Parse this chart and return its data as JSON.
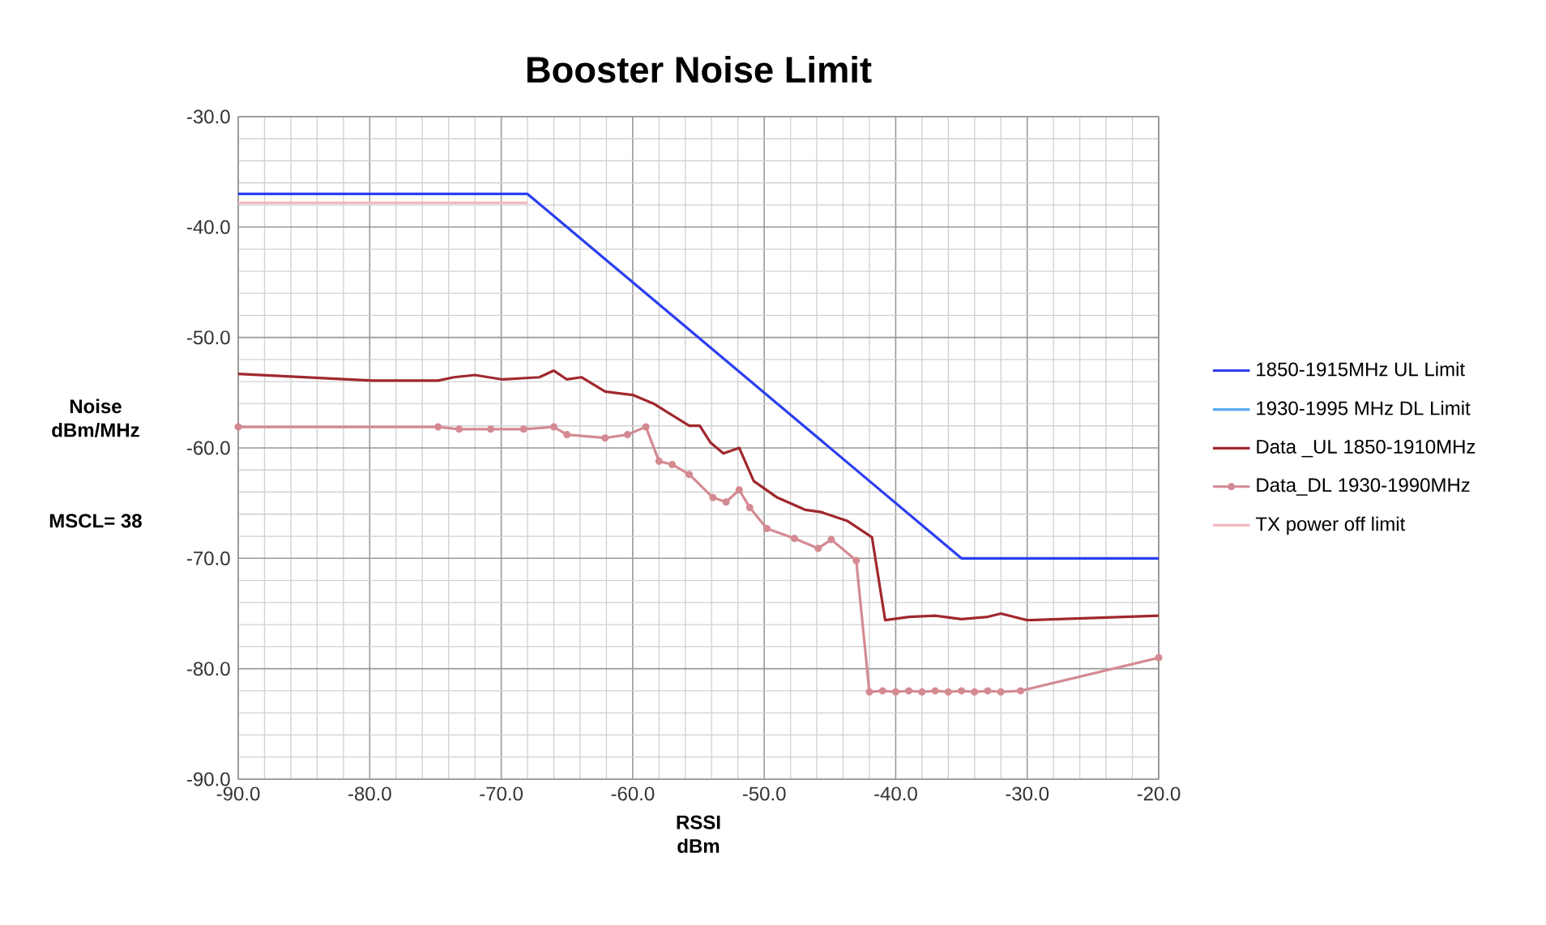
{
  "chart_data": {
    "type": "line",
    "title": "Booster Noise  Limit",
    "xlabel": "RSSI dBm",
    "ylabel": "Noise dBm/MHz",
    "annotations": [
      "MSCL= 38"
    ],
    "xlim": [
      -90,
      -20
    ],
    "ylim": [
      -90,
      -30
    ],
    "xticks": [
      {
        "value": -90,
        "label": "-90.0"
      },
      {
        "value": -80,
        "label": "-80.0"
      },
      {
        "value": -70,
        "label": "-70.0"
      },
      {
        "value": -60,
        "label": "-60.0"
      },
      {
        "value": -50,
        "label": "-50.0"
      },
      {
        "value": -40,
        "label": "-40.0"
      },
      {
        "value": -30,
        "label": "-30.0"
      },
      {
        "value": -20,
        "label": "-20.0"
      }
    ],
    "yticks": [
      {
        "value": -90,
        "label": "-90.0"
      },
      {
        "value": -80,
        "label": "-80.0"
      },
      {
        "value": -70,
        "label": "-70.0"
      },
      {
        "value": -60,
        "label": "-60.0"
      },
      {
        "value": -50,
        "label": "-50.0"
      },
      {
        "value": -40,
        "label": "-40.0"
      },
      {
        "value": -30,
        "label": "-30.0"
      }
    ],
    "grid": true,
    "legend": "right",
    "series": [
      {
        "name": "1850-1915MHz UL Limit",
        "color": "#2b3ff0",
        "marker": "none",
        "x": [
          -90,
          -68,
          -35,
          -20
        ],
        "values": [
          -37,
          -37,
          -70,
          -70
        ]
      },
      {
        "name": "1930-1995 MHz DL Limit",
        "color": "#5aa8f0",
        "marker": "none"
      },
      {
        "name": "Data _UL 1850-1910MHz",
        "color": "#a0282e",
        "marker": "none",
        "x": [
          -90,
          -79.8,
          -74.8,
          -73.6,
          -72,
          -69.9,
          -67.1,
          -66,
          -65,
          -63.9,
          -62.1,
          -60,
          -58.4,
          -55.7,
          -54.9,
          -54.1,
          -53.1,
          -51.9,
          -50.8,
          -49,
          -46.9,
          -45.7,
          -43.7,
          -41.8,
          -40.8,
          -39,
          -37,
          -35,
          -33,
          -32,
          -30,
          -20
        ],
        "values": [
          -53.3,
          -53.9,
          -53.9,
          -53.6,
          -53.4,
          -53.8,
          -53.6,
          -53,
          -53.8,
          -53.6,
          -54.9,
          -55.2,
          -56,
          -58,
          -58,
          -59.5,
          -60.5,
          -60,
          -63,
          -64.5,
          -65.6,
          -65.8,
          -66.6,
          -68.1,
          -75.6,
          -75.3,
          -75.2,
          -75.5,
          -75.3,
          -75,
          -75.6,
          -75.2
        ]
      },
      {
        "name": "Data_DL 1930-1990MHz",
        "color": "#d48a92",
        "marker": "circle",
        "x": [
          -90,
          -74.8,
          -73.2,
          -70.8,
          -68.3,
          -66,
          -65,
          -62.1,
          -60.4,
          -59,
          -58,
          -57,
          -55.7,
          -53.9,
          -52.9,
          -51.9,
          -51.1,
          -49.8,
          -47.7,
          -45.9,
          -44.9,
          -43,
          -42,
          -41,
          -40,
          -39,
          -38,
          -37,
          -36,
          -35,
          -34,
          -33,
          -32,
          -30.5,
          -20
        ],
        "values": [
          -58.1,
          -58.1,
          -58.3,
          -58.3,
          -58.3,
          -58.1,
          -58.8,
          -59.1,
          -58.8,
          -58.1,
          -61.2,
          -61.5,
          -62.4,
          -64.5,
          -64.9,
          -63.8,
          -65.4,
          -67.3,
          -68.2,
          -69.1,
          -68.3,
          -70.2,
          -82.1,
          -82,
          -82.1,
          -82,
          -82.1,
          -82,
          -82.1,
          -82,
          -82.1,
          -82,
          -82.1,
          -82,
          -79
        ]
      },
      {
        "name": "TX  power off limit",
        "color": "#f4b8c0",
        "marker": "none",
        "x": [
          -90,
          -68
        ],
        "values": [
          -37.8,
          -37.8
        ]
      }
    ]
  }
}
